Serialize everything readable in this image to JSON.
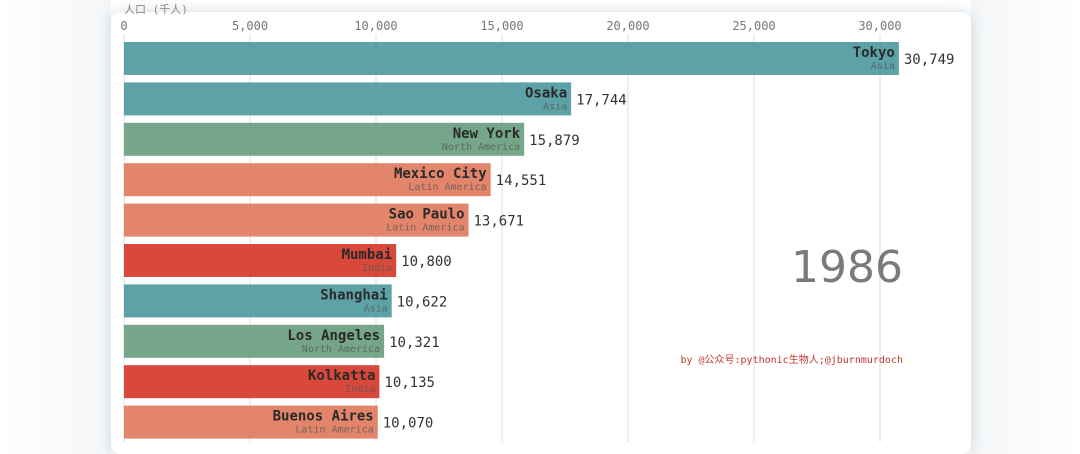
{
  "chart_data": {
    "type": "bar",
    "orientation": "horizontal",
    "xlabel": "人口 (千人)",
    "xticks": [
      0,
      5000,
      10000,
      15000,
      20000,
      25000,
      30000
    ],
    "xtick_labels": [
      "0",
      "5,000",
      "10,000",
      "15,000",
      "20,000",
      "25,000",
      "30,000"
    ],
    "xlim": [
      0,
      32500
    ],
    "grid": true,
    "categories": [
      "Tokyo",
      "Osaka",
      "New York",
      "Mexico City",
      "Sao Paulo",
      "Mumbai",
      "Shanghai",
      "Los Angeles",
      "Kolkatta",
      "Buenos Aires"
    ],
    "groups": [
      "Asia",
      "Asia",
      "North America",
      "Latin America",
      "Latin America",
      "India",
      "Asia",
      "North America",
      "India",
      "Latin America"
    ],
    "values": [
      30749,
      17744,
      15879,
      14551,
      13671,
      10800,
      10622,
      10321,
      10135,
      10070
    ],
    "value_labels": [
      "30,749",
      "17,744",
      "15,879",
      "14,551",
      "13,671",
      "10,800",
      "10,622",
      "10,321",
      "10,135",
      "10,070"
    ],
    "group_colors": {
      "Asia": "#4e9a9e",
      "North America": "#6a9e7f",
      "Latin America": "#e07b5e",
      "India": "#d63a2a"
    },
    "year": "1986",
    "credit": "by @公众号:pythonic生物人;@jburnmurdoch"
  }
}
